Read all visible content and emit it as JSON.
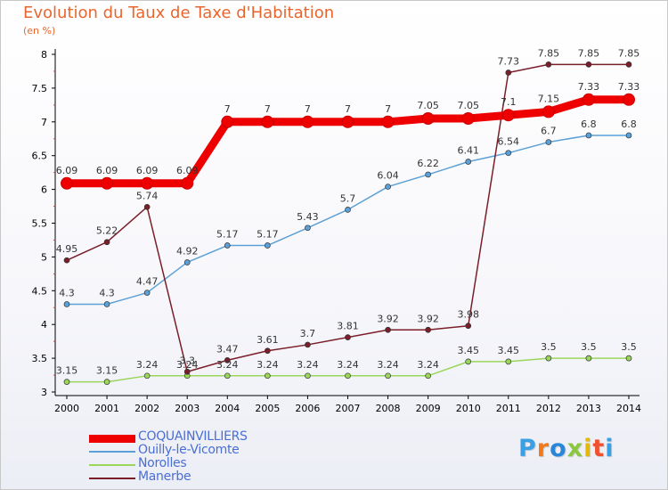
{
  "title": "Evolution du Taux de Taxe d'Habitation",
  "subtitle": "(en %)",
  "logo": {
    "text": "Proxiti",
    "colors": [
      "#3aa0e6",
      "#f07a1a",
      "#2a86d9",
      "#8bc63f",
      "#e6b800",
      "#f0502d",
      "#3aa0e6"
    ]
  },
  "chart_data": {
    "type": "line",
    "title": "Evolution du Taux de Taxe d'Habitation",
    "subtitle": "(en %)",
    "x": [
      2000,
      2001,
      2002,
      2003,
      2004,
      2005,
      2006,
      2007,
      2008,
      2009,
      2010,
      2011,
      2012,
      2013,
      2014
    ],
    "ylim": [
      3,
      8
    ],
    "yticks": [
      3,
      3.5,
      4,
      4.5,
      5,
      5.5,
      6,
      6.5,
      7,
      7.5,
      8
    ],
    "ytick_labels": [
      "3",
      "3.5",
      "4",
      "4.5",
      "5",
      "5.5",
      "6",
      "6.5",
      "7",
      "7.5",
      "8"
    ],
    "grid": false,
    "legend_position": "bottom-left",
    "series": [
      {
        "name": "COQUAINVILLIERS",
        "color": "#ee0000",
        "emphasis": true,
        "values": [
          6.09,
          6.09,
          6.09,
          6.09,
          7,
          7,
          7,
          7,
          7,
          7.05,
          7.05,
          7.1,
          7.15,
          7.33,
          7.33
        ],
        "labels": [
          "6.09",
          "6.09",
          "6.09",
          "6.09",
          "7",
          "7",
          "7",
          "7",
          "7",
          "7.05",
          "7.05",
          "7.1",
          "7.15",
          "7.33",
          "7.33"
        ]
      },
      {
        "name": "Ouilly-le-Vicomte",
        "color": "#5ba0d6",
        "values": [
          4.3,
          4.3,
          4.47,
          4.92,
          5.17,
          5.17,
          5.43,
          5.7,
          6.04,
          6.22,
          6.41,
          6.54,
          6.7,
          6.8,
          6.8
        ],
        "labels": [
          "4.3",
          "4.3",
          "4.47",
          "4.92",
          "5.17",
          "5.17",
          "5.43",
          "5.7",
          "6.04",
          "6.22",
          "6.41",
          "6.54",
          "6.7",
          "6.8",
          "6.8"
        ]
      },
      {
        "name": "Norolles",
        "color": "#9ad65a",
        "values": [
          3.15,
          3.15,
          3.24,
          3.24,
          3.24,
          3.24,
          3.24,
          3.24,
          3.24,
          3.24,
          3.45,
          3.45,
          3.5,
          3.5,
          3.5
        ],
        "labels": [
          "3.15",
          "3.15",
          "3.24",
          "3.24",
          "3.24",
          "3.24",
          "3.24",
          "3.24",
          "3.24",
          "3.24",
          "3.45",
          "3.45",
          "3.5",
          "3.5",
          "3.5"
        ]
      },
      {
        "name": "Manerbe",
        "color": "#7a1f2a",
        "values": [
          4.95,
          5.22,
          5.74,
          3.3,
          3.47,
          3.61,
          3.7,
          3.81,
          3.92,
          3.92,
          3.98,
          7.73,
          7.85,
          7.85,
          7.85
        ],
        "labels": [
          "4.95",
          "5.22",
          "5.74",
          "3.3",
          "3.47",
          "3.61",
          "3.7",
          "3.81",
          "3.92",
          "3.92",
          "3.98",
          "7.73",
          "7.85",
          "7.85",
          "7.85"
        ]
      }
    ]
  }
}
